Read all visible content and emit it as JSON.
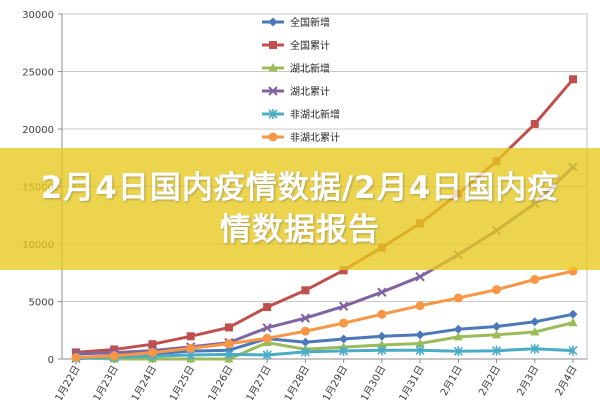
{
  "banner": {
    "title": "2月4日国内疫情数据/2月4日国内疫情数据报告",
    "background": "#e8c91e",
    "opacity": 0.78
  },
  "chart_data": {
    "type": "line",
    "categories": [
      "1月22日",
      "1月23日",
      "1月24日",
      "1月25日",
      "1月26日",
      "1月27日",
      "1月28日",
      "1月29日",
      "1月30日",
      "1月31日",
      "2月1日",
      "2月2日",
      "2月3日",
      "2月4日"
    ],
    "ylim": [
      0,
      30000
    ],
    "yticks": [
      0,
      5000,
      10000,
      15000,
      20000,
      25000,
      30000
    ],
    "grid": true,
    "legend_position": "top-center",
    "series": [
      {
        "name": "全国新增",
        "color": "#4a78b8",
        "marker": "diamond",
        "values": [
          131,
          259,
          444,
          688,
          769,
          1771,
          1459,
          1737,
          1982,
          2102,
          2590,
          2829,
          3235,
          3887
        ]
      },
      {
        "name": "全国累计",
        "color": "#c0504d",
        "marker": "square",
        "values": [
          571,
          830,
          1287,
          1975,
          2744,
          4515,
          5974,
          7711,
          9692,
          11791,
          14380,
          17205,
          20438,
          24324
        ]
      },
      {
        "name": "湖北新增",
        "color": "#9bbb59",
        "marker": "triangle",
        "values": [
          105,
          0,
          0,
          0,
          0,
          1423,
          840,
          1032,
          1220,
          1347,
          1921,
          2103,
          2345,
          3156
        ]
      },
      {
        "name": "湖北累计",
        "color": "#8064a2",
        "marker": "cross",
        "values": [
          444,
          549,
          729,
          1052,
          1423,
          2714,
          3554,
          4586,
          5806,
          7153,
          9074,
          11177,
          13522,
          16678
        ]
      },
      {
        "name": "非湖北新增",
        "color": "#4bacc6",
        "marker": "asterisk",
        "values": [
          26,
          152,
          249,
          346,
          401,
          348,
          619,
          705,
          762,
          755,
          669,
          726,
          890,
          731
        ]
      },
      {
        "name": "非湖北累计",
        "color": "#f79646",
        "marker": "circle",
        "values": [
          127,
          281,
          558,
          923,
          1321,
          1801,
          2420,
          3125,
          3886,
          4638,
          5306,
          6028,
          6916,
          7646
        ]
      }
    ]
  }
}
